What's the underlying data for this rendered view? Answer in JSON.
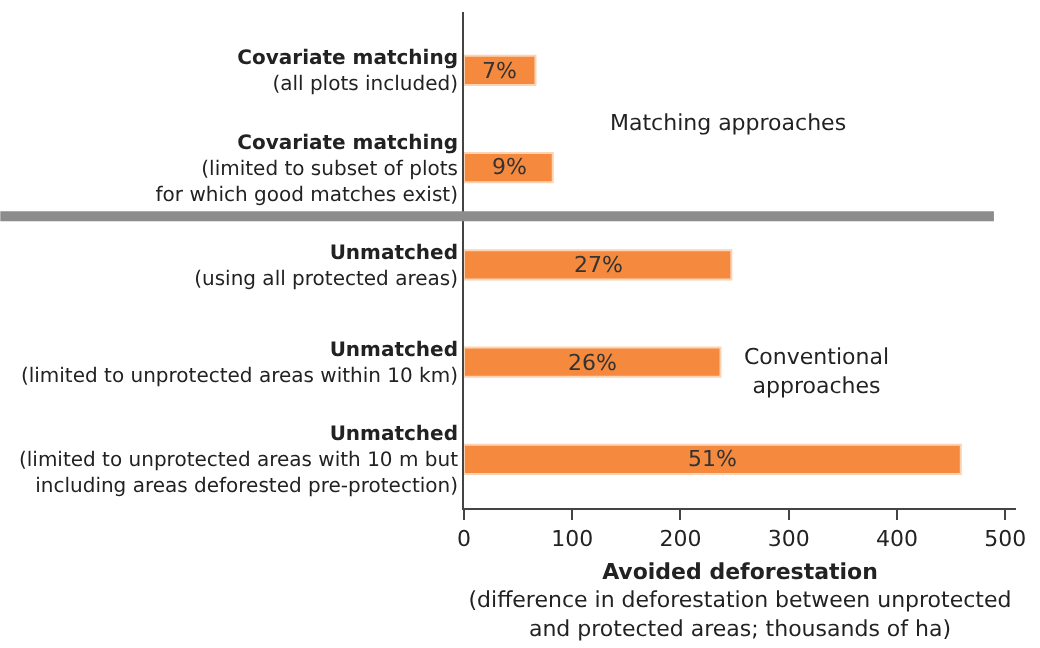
{
  "chart_data": {
    "type": "bar",
    "orientation": "horizontal",
    "categories": [
      "Covariate matching\n(all plots included)",
      "Covariate matching\n(limited to subset of plots\nfor which good matches exist)",
      "Unmatched\n(using all protected areas)",
      "Unmatched\n(limited to unprotected areas within 10 km)",
      "Unmatched\n(limited to unprotected areas with 10 m but\nincluding areas deforested pre-protection)"
    ],
    "values": [
      66,
      82,
      247,
      237,
      459
    ],
    "color": "#f58a3e",
    "xlabel": "Avoided deforestation\n(difference in deforestation between unprotected\nand protected areas; thousands of ha)",
    "xlim": [
      0,
      510
    ],
    "xticks": [
      0,
      100,
      200,
      300,
      400,
      500
    ],
    "legend": false,
    "annotations": [
      "Matching approaches",
      "Conventional\napproaches",
      "7%",
      "9%",
      "27%",
      "26%",
      "51%"
    ]
  }
}
